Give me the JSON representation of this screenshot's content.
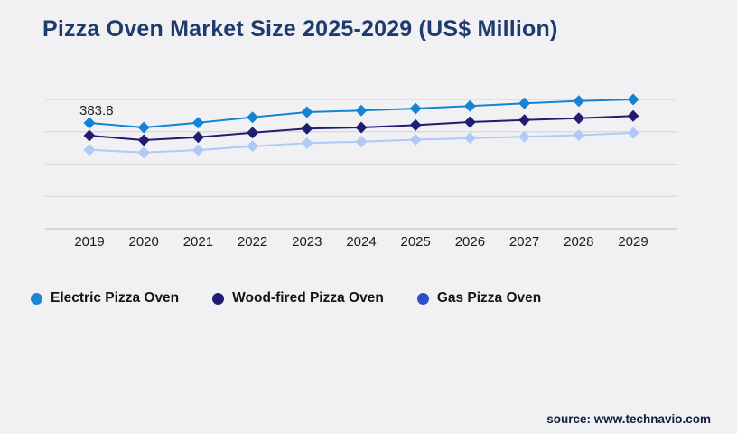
{
  "page": {
    "background": "#f1f1f4"
  },
  "header": {
    "title": "Pizza Oven Market Size 2025-2029 (US$ Million)",
    "title_color": "#1d3b6d"
  },
  "chart_data": {
    "type": "line",
    "title": "Pizza Oven Market Size 2025-2029 (US$ Million)",
    "categories": [
      "2019",
      "2020",
      "2021",
      "2022",
      "2023",
      "2024",
      "2025",
      "2026",
      "2027",
      "2028",
      "2029"
    ],
    "series": [
      {
        "name": "Electric Pizza Oven",
        "color": "#1583d3",
        "legend_color": "#1e87d2",
        "marker": "diamond",
        "values": [
          383.8,
          367.4,
          384.8,
          404.5,
          423.2,
          428.8,
          436.3,
          445.2,
          455.0,
          463.5,
          469.1
        ]
      },
      {
        "name": "Wood-fired Pizza Oven",
        "color": "#211c6f",
        "legend_color": "#221b72",
        "marker": "diamond",
        "values": [
          337.9,
          321.5,
          332.3,
          348.7,
          363.1,
          367.4,
          376.2,
          387.1,
          394.6,
          401.2,
          409.1
        ]
      },
      {
        "name": "Gas Pizza Oven",
        "color": "#b0c9f6",
        "legend_color": "#2b51c5",
        "marker": "diamond",
        "values": [
          286.4,
          276.5,
          285.4,
          299.5,
          310.6,
          315.9,
          323.1,
          328.7,
          333.9,
          339.5,
          347.7
        ]
      }
    ],
    "annotations": [
      {
        "series_index": 0,
        "category_index": 0,
        "text": "383.8"
      }
    ],
    "ylim": [
      0,
      500
    ],
    "grid": "horizontal",
    "gridline_count": 5,
    "legend_position": "bottom-left",
    "xlabel": "",
    "ylabel": "",
    "axis_tick_color": "#1b1b1b",
    "gridline_color": "#d7d7db",
    "axisline_color": "#c9c9ce",
    "annotation_color": "#222222"
  },
  "footer": {
    "source": "source: www.technavio.com"
  }
}
